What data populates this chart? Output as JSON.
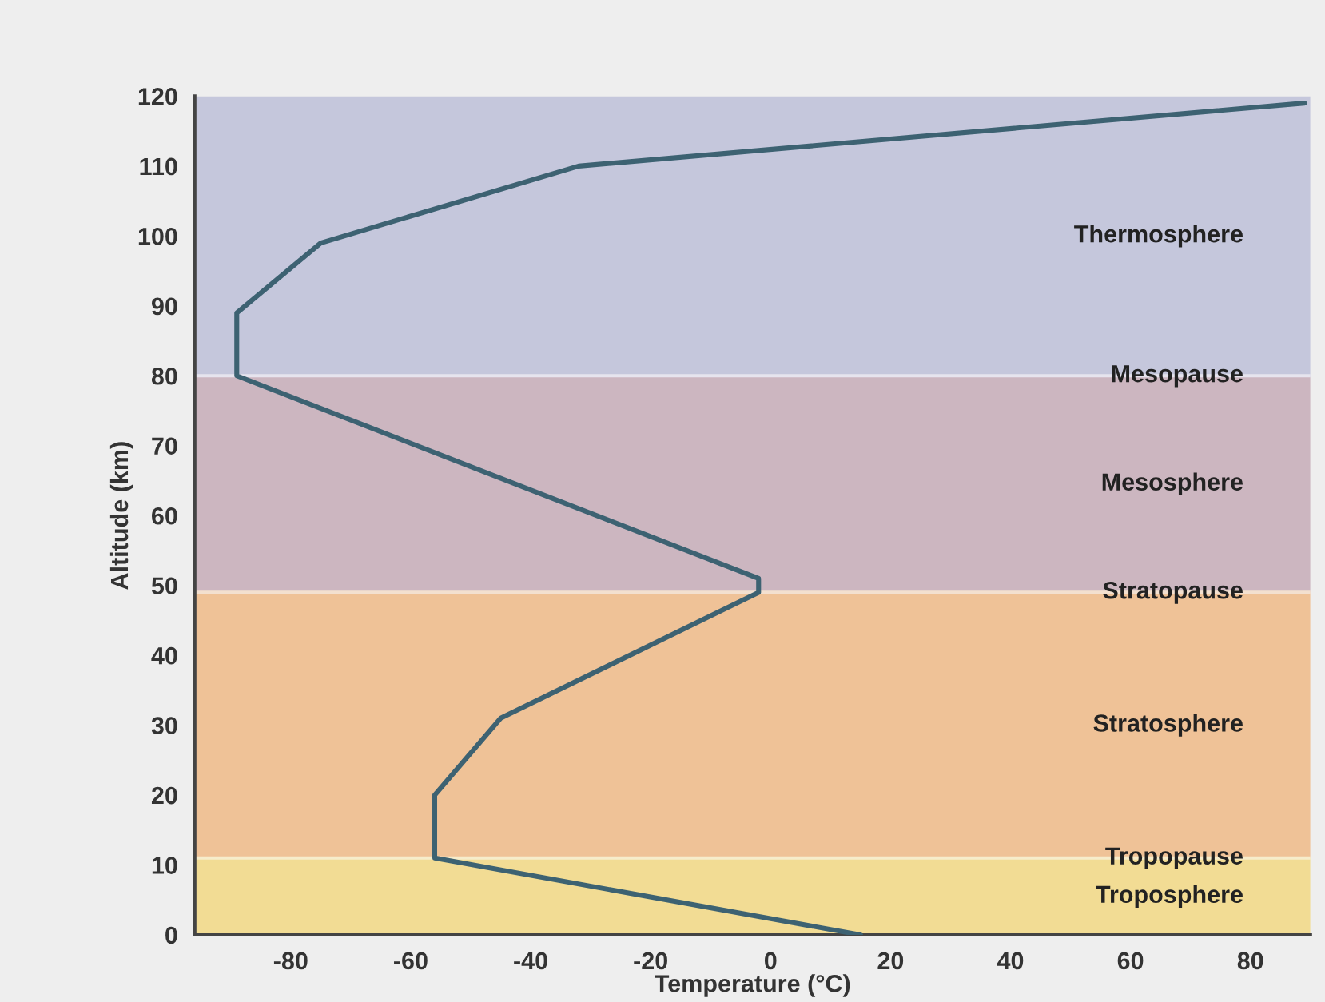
{
  "chart_data": {
    "type": "line",
    "xlabel": "Temperature (°C)",
    "ylabel": "Altitude (km)",
    "x": [
      15,
      -56,
      -56,
      -45,
      -2,
      -2,
      -89,
      -89,
      -75,
      -32,
      89
    ],
    "series": [
      {
        "color": "#3d6272",
        "values": [
          0,
          11,
          20,
          31,
          49,
          51,
          80,
          89,
          99,
          110,
          119
        ]
      }
    ],
    "xlim": [
      -96,
      90
    ],
    "xticks": [
      -80,
      -60,
      -40,
      -20,
      0,
      20,
      40,
      60,
      80
    ],
    "ylim": [
      0,
      120
    ],
    "yticks": [
      0,
      10,
      20,
      30,
      40,
      50,
      60,
      70,
      80,
      90,
      100,
      110,
      120
    ],
    "bands": [
      {
        "axis": "y",
        "from": 0,
        "to": 11,
        "label": "Troposphere",
        "color": "#f2dc94"
      },
      {
        "axis": "y",
        "from": 11,
        "to": 49,
        "label": "Stratosphere",
        "color": "#efc297"
      },
      {
        "axis": "y",
        "from": 49,
        "to": 80,
        "label": "Mesosphere",
        "color": "#ccb6c0"
      },
      {
        "axis": "y",
        "from": 80,
        "to": 120,
        "label": "Thermosphere",
        "color": "#c5c7dc"
      }
    ],
    "ref_lines": [
      {
        "axis": "y",
        "value": 11,
        "label": "Tropopause",
        "color": "#f6eccb"
      },
      {
        "axis": "y",
        "value": 49,
        "label": "Stratopause",
        "color": "#f3e0cf"
      },
      {
        "axis": "y",
        "value": 80,
        "label": "Mesopause",
        "color": "#e6e4ee"
      }
    ],
    "grid": false,
    "legend": false,
    "marker": "none",
    "line_style": "solid"
  }
}
